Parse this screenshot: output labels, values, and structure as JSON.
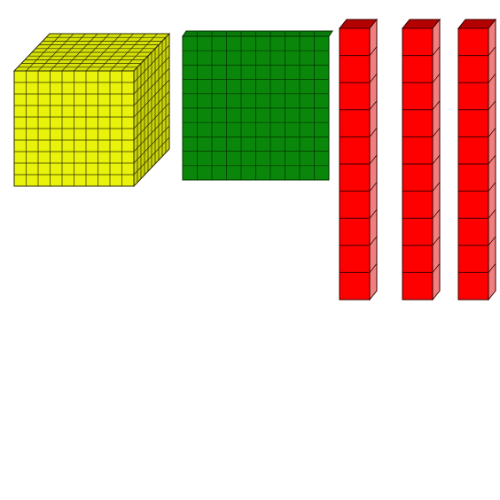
{
  "blocks": {
    "cube": {
      "name": "thousand-cube",
      "count": 1,
      "units_per_edge": 10,
      "colors": {
        "front": "#e8f20a",
        "top": "#d6e00a",
        "side": "#c9d308",
        "line": "#2a2a00"
      }
    },
    "flat": {
      "name": "hundred-flat",
      "count": 1,
      "units_per_edge": 10,
      "colors": {
        "front": "#0a870a",
        "top": "#0a7a0a",
        "line": "#003300"
      }
    },
    "rods": {
      "name": "ten-rod",
      "count": 3,
      "units_per_rod": 10,
      "colors": {
        "front": "#ff0000",
        "top": "#b30000",
        "side": "#f08080",
        "line": "#3a0000"
      }
    }
  }
}
